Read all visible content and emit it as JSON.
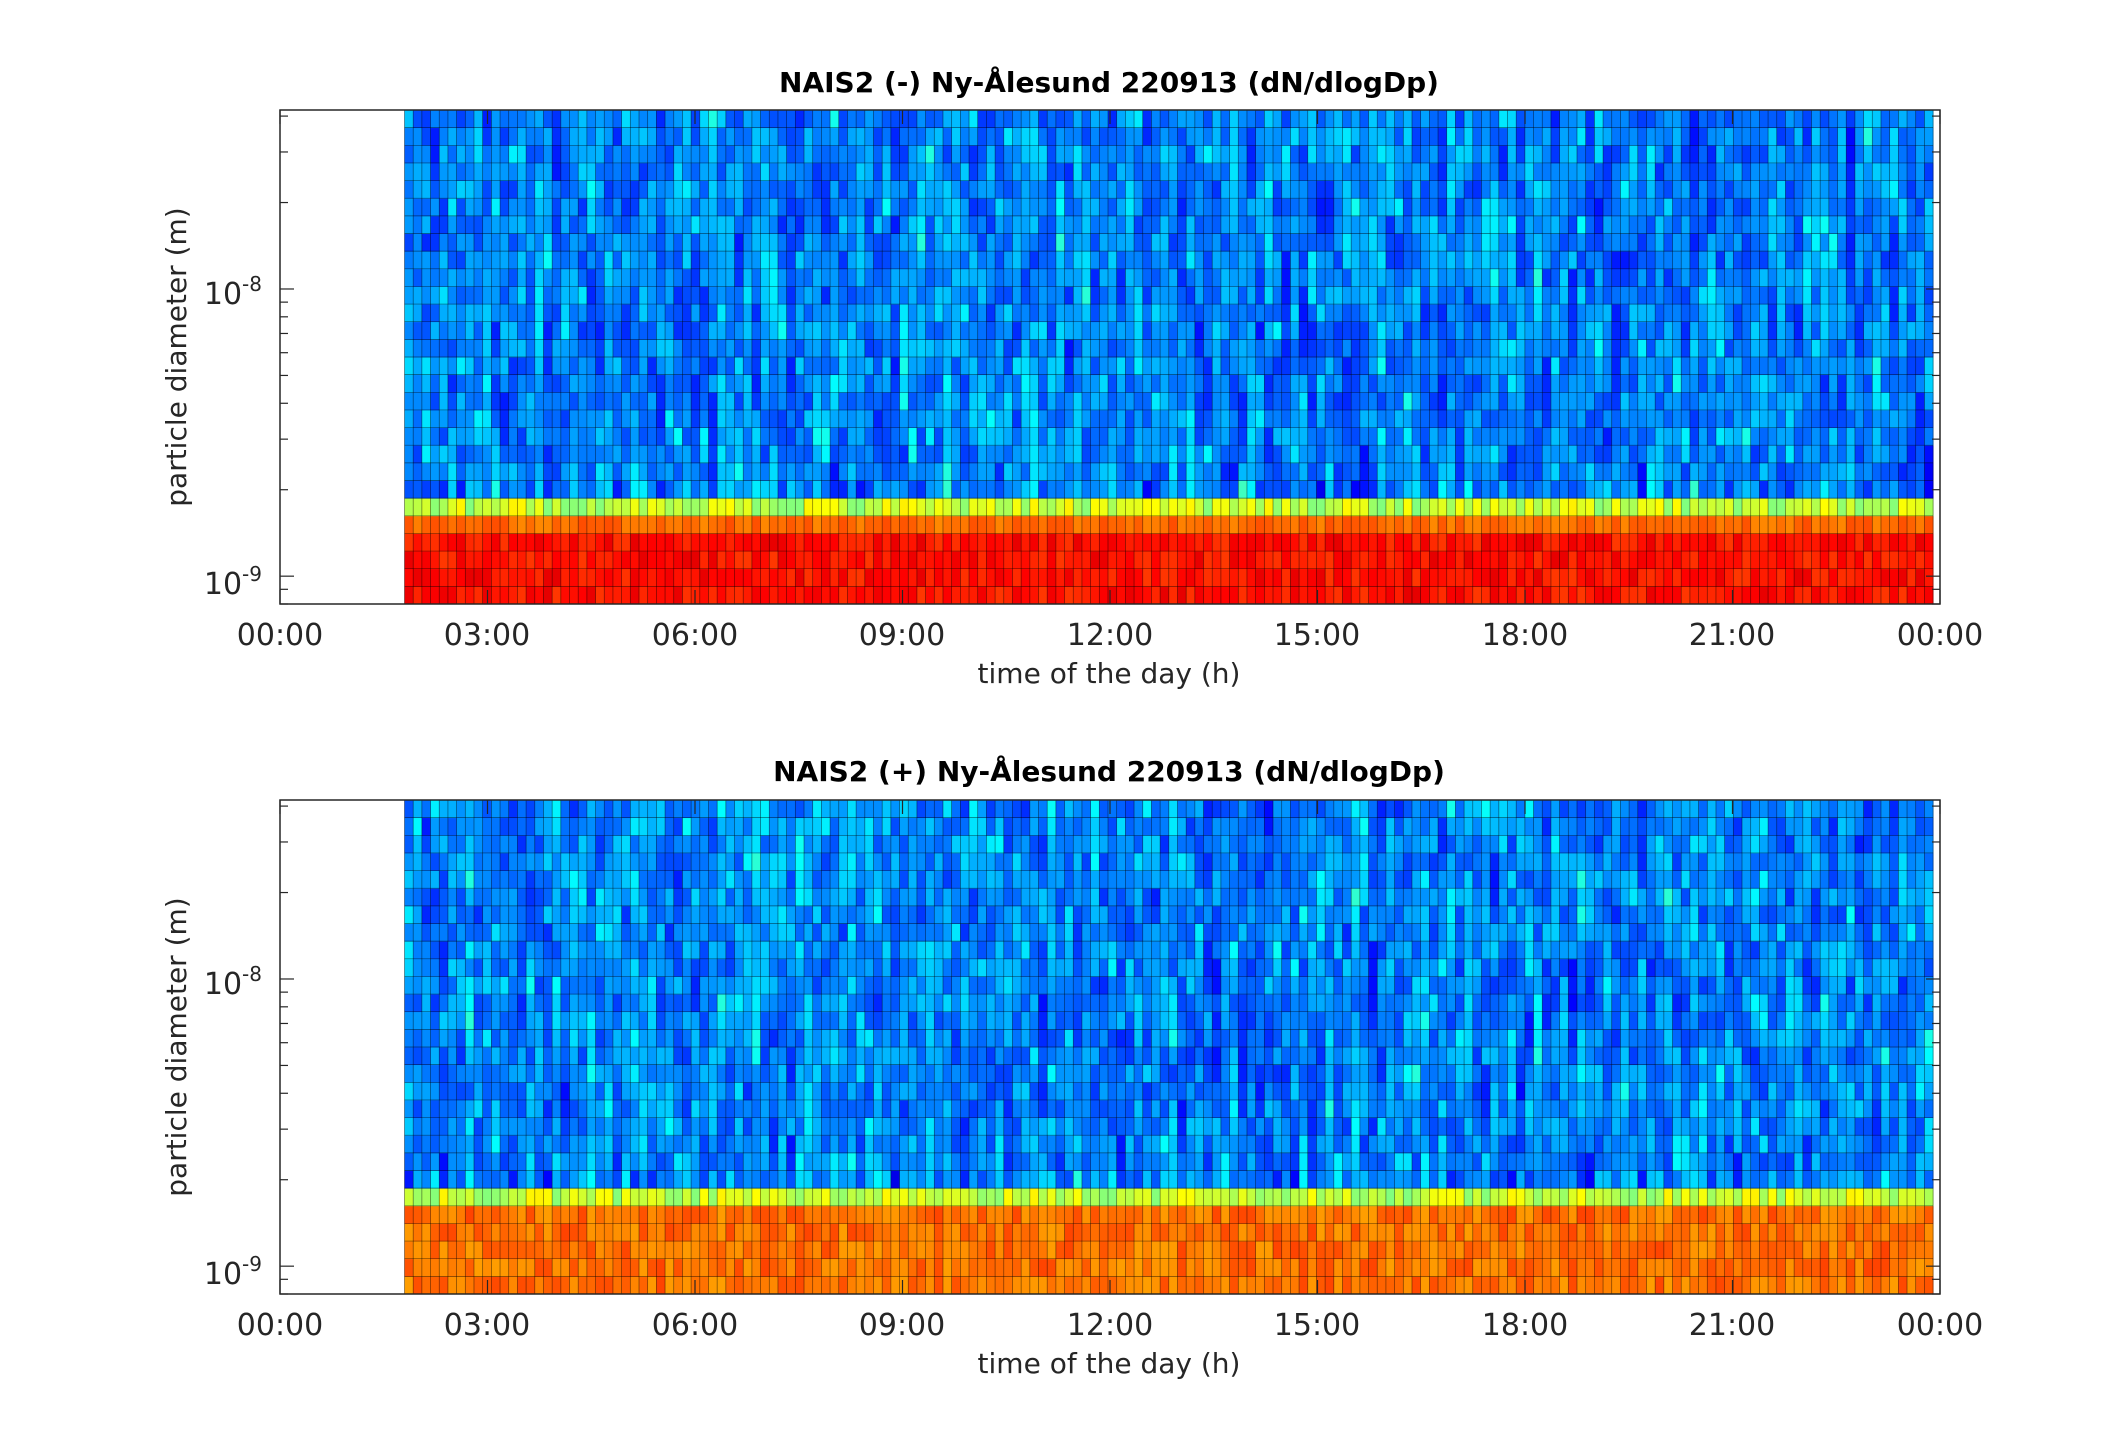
{
  "chart_data": [
    {
      "type": "heatmap",
      "title": "NAIS2 (-) Ny-Ålesund 220913 (dN/dlogDp)",
      "xlabel": "time of the day (h)",
      "ylabel": "particle diameter (m)",
      "xlim": [
        0,
        24
      ],
      "x_tick_labels": [
        "00:00",
        "03:00",
        "06:00",
        "09:00",
        "12:00",
        "15:00",
        "18:00",
        "21:00",
        "00:00"
      ],
      "yscale": "log",
      "ylim": [
        8e-10,
        4.2e-08
      ],
      "y_tick_labels": [
        {
          "base": "10",
          "exp": "-9",
          "value": 1e-09
        },
        {
          "base": "10",
          "exp": "-8",
          "value": 1e-08
        }
      ],
      "data_start_hour": 1.8,
      "data_end_hour": 23.9,
      "colormap": "jet",
      "bands": [
        {
          "dp_from": 8e-10,
          "dp_to": 1.4e-09,
          "level": "high (red)"
        },
        {
          "dp_from": 1.4e-09,
          "dp_to": 1.6e-09,
          "level": "medium-high (orange)"
        },
        {
          "dp_from": 1.6e-09,
          "dp_to": 2e-09,
          "level": "medium (yellow/green)"
        },
        {
          "dp_from": 2e-09,
          "dp_to": 4.2e-08,
          "level": "low (blue/cyan)"
        }
      ]
    },
    {
      "type": "heatmap",
      "title": "NAIS2 (+) Ny-Ålesund 220913 (dN/dlogDp)",
      "xlabel": "time of the day (h)",
      "ylabel": "particle diameter (m)",
      "xlim": [
        0,
        24
      ],
      "x_tick_labels": [
        "00:00",
        "03:00",
        "06:00",
        "09:00",
        "12:00",
        "15:00",
        "18:00",
        "21:00",
        "00:00"
      ],
      "yscale": "log",
      "ylim": [
        8e-10,
        4.2e-08
      ],
      "y_tick_labels": [
        {
          "base": "10",
          "exp": "-9",
          "value": 1e-09
        },
        {
          "base": "10",
          "exp": "-8",
          "value": 1e-08
        }
      ],
      "data_start_hour": 1.8,
      "data_end_hour": 23.9,
      "colormap": "jet",
      "bands": [
        {
          "dp_from": 8e-10,
          "dp_to": 8.5e-10,
          "level": "mixed (blue/yellow)"
        },
        {
          "dp_from": 8.5e-10,
          "dp_to": 1.6e-09,
          "level": "high (orange)"
        },
        {
          "dp_from": 1.6e-09,
          "dp_to": 1.8e-09,
          "level": "medium (yellow/green)"
        },
        {
          "dp_from": 1.8e-09,
          "dp_to": 4.2e-08,
          "level": "low (blue/cyan)"
        }
      ]
    }
  ]
}
